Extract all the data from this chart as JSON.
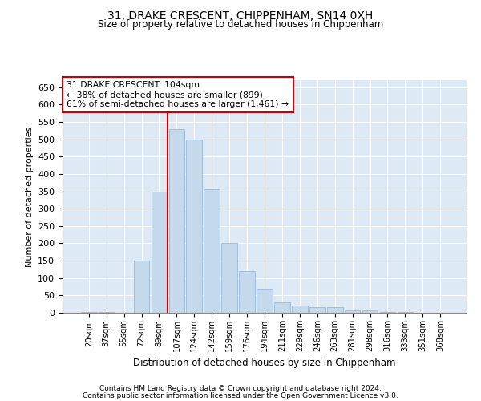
{
  "title": "31, DRAKE CRESCENT, CHIPPENHAM, SN14 0XH",
  "subtitle": "Size of property relative to detached houses in Chippenham",
  "xlabel": "Distribution of detached houses by size in Chippenham",
  "ylabel": "Number of detached properties",
  "bar_color": "#c5d9ec",
  "bar_edge_color": "#9ab8d4",
  "background_color": "#dde9f4",
  "grid_color": "#ffffff",
  "categories": [
    "20sqm",
    "37sqm",
    "55sqm",
    "72sqm",
    "89sqm",
    "107sqm",
    "124sqm",
    "142sqm",
    "159sqm",
    "176sqm",
    "194sqm",
    "211sqm",
    "229sqm",
    "246sqm",
    "263sqm",
    "281sqm",
    "298sqm",
    "316sqm",
    "333sqm",
    "351sqm",
    "368sqm"
  ],
  "values": [
    3,
    2,
    0,
    150,
    350,
    530,
    500,
    355,
    200,
    120,
    70,
    30,
    20,
    16,
    16,
    8,
    8,
    3,
    2,
    1,
    0
  ],
  "property_line_index": 5,
  "property_line_label": "31 DRAKE CRESCENT: 104sqm",
  "annotation_line1": "← 38% of detached houses are smaller (899)",
  "annotation_line2": "61% of semi-detached houses are larger (1,461) →",
  "annotation_box_color": "#ffffff",
  "annotation_box_edge": "#cc0000",
  "property_line_color": "#cc0000",
  "ylim": [
    0,
    670
  ],
  "yticks": [
    0,
    50,
    100,
    150,
    200,
    250,
    300,
    350,
    400,
    450,
    500,
    550,
    600,
    650
  ],
  "footnote1": "Contains HM Land Registry data © Crown copyright and database right 2024.",
  "footnote2": "Contains public sector information licensed under the Open Government Licence v3.0."
}
